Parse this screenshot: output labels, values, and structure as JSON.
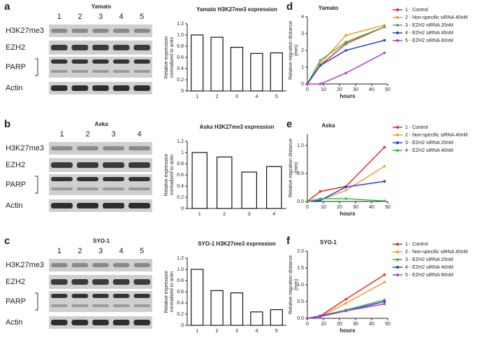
{
  "blots": [
    {
      "panel": "a",
      "cell_line": "Yamato",
      "lanes": [
        "1",
        "2",
        "3",
        "4",
        "5"
      ],
      "rows": [
        "H3K27me3",
        "EZH2",
        "PARP",
        "Actin"
      ]
    },
    {
      "panel": "b",
      "cell_line": "Aska",
      "lanes": [
        "1",
        "2",
        "3",
        "4"
      ],
      "rows": [
        "H3K27me3",
        "EZH2",
        "PARP",
        "Actin"
      ]
    },
    {
      "panel": "c",
      "cell_line": "SYO-1",
      "lanes": [
        "1",
        "2",
        "3",
        "4",
        "5"
      ],
      "rows": [
        "H3K27me3",
        "EZH2",
        "PARP",
        "Actin"
      ]
    }
  ],
  "chart_data": [
    {
      "type": "bar",
      "title": "Yamato H3K27me3 expression",
      "ylabel": [
        "Relative expression",
        "normalized to actin"
      ],
      "categories": [
        "1",
        "2",
        "3",
        "4",
        "5"
      ],
      "values": [
        1.0,
        0.96,
        0.78,
        0.67,
        0.68
      ],
      "color": "#ffffff",
      "ylim": [
        0,
        1.2
      ],
      "yticks": [
        0,
        0.2,
        0.4,
        0.6,
        0.8,
        {
          "value": 1,
          "label": "1.0"
        },
        1.2
      ]
    },
    {
      "type": "line",
      "panel": "d",
      "title": "Yamato",
      "ylabel": [
        "Relative migration distance",
        "(mm)"
      ],
      "xlabel": "hours",
      "x": [
        0,
        8,
        24,
        48
      ],
      "xlim": [
        0,
        50
      ],
      "xticks": [
        0,
        10,
        20,
        30,
        40,
        50
      ],
      "ylim": [
        0,
        4
      ],
      "yticks": [
        0,
        1,
        2,
        3,
        4
      ],
      "series": [
        {
          "name": "1 - Control",
          "color": "#e8282b",
          "values": [
            0,
            1.1,
            2.4,
            3.4
          ]
        },
        {
          "name": "2 - Non-specific siRNA 40nM",
          "color": "#f39c32",
          "values": [
            0,
            1.2,
            2.9,
            3.5
          ]
        },
        {
          "name": "3 - EZH2 siRNA 20nM",
          "color": "#3fb54a",
          "values": [
            0,
            1.4,
            2.5,
            3.4
          ]
        },
        {
          "name": "4 - EZH2 siRNA 40nM",
          "color": "#2b3bd6",
          "values": [
            0,
            1.1,
            2.0,
            2.6
          ]
        },
        {
          "name": "5 - EZH2 siRNA 60nM",
          "color": "#b03fd6",
          "values": [
            0,
            0,
            0.65,
            1.85
          ]
        }
      ]
    },
    {
      "type": "bar",
      "title": "Aska H3K27me3 expression",
      "ylabel": [
        "Relative expression",
        "normalized to actin"
      ],
      "categories": [
        "1",
        "2",
        "3",
        "4"
      ],
      "values": [
        1.0,
        0.92,
        0.65,
        0.75
      ],
      "color": "#ffffff",
      "ylim": [
        0,
        1.2
      ],
      "yticks": [
        0,
        0.2,
        0.4,
        0.6,
        0.8,
        1,
        1.2
      ]
    },
    {
      "type": "line",
      "panel": "e",
      "title": "Aska",
      "ylabel": [
        "Relative migration distance",
        "(mm)"
      ],
      "xlabel": "hours",
      "x": [
        0,
        8,
        24,
        48
      ],
      "xlim": [
        0,
        50
      ],
      "xticks": [
        0,
        10,
        20,
        30,
        40,
        50
      ],
      "ylim": [
        0,
        1.2
      ],
      "yticks": [
        {
          "value": 0,
          "label": "0.0"
        },
        0.5,
        {
          "value": 1,
          "label": "1.0"
        }
      ],
      "series": [
        {
          "name": "1 - Control",
          "color": "#e8282b",
          "values": [
            0,
            0.18,
            0.27,
            0.97
          ]
        },
        {
          "name": "2 - Non-specific siRNA 40nM",
          "color": "#f39c32",
          "values": [
            0,
            0.02,
            0.2,
            0.63
          ]
        },
        {
          "name": "3 - EZH2 siRNA 20nM",
          "color": "#2b3bd6",
          "values": [
            0,
            0.02,
            0.26,
            0.36
          ]
        },
        {
          "name": "4 - EZH2 siRNA 40nM",
          "color": "#3fb54a",
          "values": [
            0,
            0.05,
            0.05,
            0.01
          ]
        }
      ]
    },
    {
      "type": "bar",
      "title": "SYO-1 H3K27me3 expression",
      "ylabel": [
        "Relative expression",
        "normalized to actin"
      ],
      "categories": [
        "1",
        "2",
        "3",
        "4",
        "5"
      ],
      "values": [
        1.0,
        0.62,
        0.58,
        0.24,
        0.28
      ],
      "color": "#ffffff",
      "ylim": [
        0,
        1.2
      ],
      "yticks": [
        0,
        0.2,
        0.4,
        0.6,
        0.8,
        {
          "value": 1,
          "label": "1.0"
        },
        1.2
      ]
    },
    {
      "type": "line",
      "panel": "f",
      "title": "SYO-1",
      "ylabel": [
        "Relative migration distance",
        "(mm)"
      ],
      "xlabel": "hours",
      "x": [
        0,
        8,
        24,
        48
      ],
      "xlim": [
        0,
        50
      ],
      "xticks": [
        0,
        10,
        20,
        30,
        40,
        50
      ],
      "ylim": [
        0,
        2
      ],
      "yticks": [
        {
          "value": 0,
          "label": "0.0"
        },
        0.5,
        {
          "value": 1,
          "label": "1.0"
        },
        1.5,
        {
          "value": 2,
          "label": "2.0"
        }
      ],
      "series": [
        {
          "name": "1 - Control",
          "color": "#e8282b",
          "values": [
            0,
            0.07,
            0.57,
            1.3
          ]
        },
        {
          "name": "2 - Non-specific siRNA 40nM",
          "color": "#f39c32",
          "values": [
            0,
            0.05,
            0.45,
            1.08
          ]
        },
        {
          "name": "3 - EZH2 siRNA 20nM",
          "color": "#3fb54a",
          "values": [
            0,
            0.07,
            0.25,
            0.55
          ]
        },
        {
          "name": "4 - EZH2 siRNA 40nM",
          "color": "#2b3bd6",
          "values": [
            0,
            0.07,
            0.22,
            0.5
          ]
        },
        {
          "name": "5 - EZH2 siRNA 60nM",
          "color": "#b03fd6",
          "values": [
            0,
            0.05,
            0.22,
            0.43
          ]
        }
      ]
    }
  ]
}
